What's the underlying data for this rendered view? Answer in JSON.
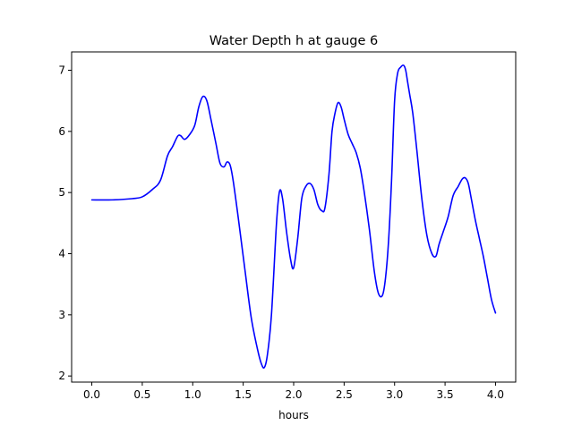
{
  "chart_data": {
    "type": "line",
    "title": "Water Depth h at gauge 6",
    "xlabel": "hours",
    "ylabel": "",
    "xlim": [
      -0.2,
      4.2
    ],
    "ylim": [
      1.9,
      7.3
    ],
    "xticks": [
      0.0,
      0.5,
      1.0,
      1.5,
      2.0,
      2.5,
      3.0,
      3.5,
      4.0
    ],
    "xtick_labels": [
      "0.0",
      "0.5",
      "1.0",
      "1.5",
      "2.0",
      "2.5",
      "3.0",
      "3.5",
      "4.0"
    ],
    "yticks": [
      2,
      3,
      4,
      5,
      6,
      7
    ],
    "ytick_labels": [
      "2",
      "3",
      "4",
      "5",
      "6",
      "7"
    ],
    "grid": false,
    "legend": "none",
    "colors": {
      "line": "#0000ff",
      "axes": "#000000",
      "background": "#ffffff"
    },
    "series": [
      {
        "x": [
          0.0,
          0.2,
          0.4,
          0.5,
          0.6,
          0.68,
          0.75,
          0.8,
          0.85,
          0.88,
          0.92,
          0.97,
          1.02,
          1.06,
          1.1,
          1.14,
          1.18,
          1.23,
          1.27,
          1.31,
          1.34,
          1.37,
          1.4,
          1.45,
          1.52,
          1.58,
          1.64,
          1.68,
          1.71,
          1.74,
          1.78,
          1.83,
          1.86,
          1.89,
          1.93,
          1.97,
          2.0,
          2.04,
          2.08,
          2.12,
          2.16,
          2.2,
          2.24,
          2.28,
          2.31,
          2.35,
          2.38,
          2.41,
          2.44,
          2.47,
          2.5,
          2.54,
          2.58,
          2.62,
          2.66,
          2.7,
          2.75,
          2.8,
          2.84,
          2.88,
          2.91,
          2.94,
          2.97,
          3.0,
          3.03,
          3.06,
          3.09,
          3.11,
          3.13,
          3.15,
          3.18,
          3.22,
          3.27,
          3.32,
          3.37,
          3.41,
          3.44,
          3.48,
          3.53,
          3.58,
          3.63,
          3.67,
          3.7,
          3.73,
          3.76,
          3.8,
          3.84,
          3.88,
          3.92,
          3.96,
          4.0
        ],
        "y": [
          4.88,
          4.88,
          4.9,
          4.93,
          5.05,
          5.2,
          5.6,
          5.75,
          5.92,
          5.93,
          5.87,
          5.95,
          6.1,
          6.4,
          6.57,
          6.5,
          6.2,
          5.8,
          5.48,
          5.42,
          5.5,
          5.45,
          5.2,
          4.6,
          3.7,
          2.95,
          2.45,
          2.2,
          2.14,
          2.35,
          3.0,
          4.5,
          5.02,
          4.9,
          4.35,
          3.9,
          3.77,
          4.25,
          4.9,
          5.1,
          5.15,
          5.05,
          4.8,
          4.7,
          4.75,
          5.3,
          6.0,
          6.3,
          6.47,
          6.4,
          6.2,
          5.95,
          5.8,
          5.65,
          5.4,
          5.0,
          4.4,
          3.7,
          3.35,
          3.32,
          3.6,
          4.2,
          5.2,
          6.5,
          6.95,
          7.05,
          7.08,
          7.0,
          6.8,
          6.6,
          6.3,
          5.7,
          4.9,
          4.3,
          4.0,
          3.96,
          4.15,
          4.35,
          4.6,
          4.95,
          5.1,
          5.22,
          5.24,
          5.15,
          4.9,
          4.55,
          4.25,
          3.95,
          3.6,
          3.25,
          3.03
        ]
      }
    ]
  }
}
